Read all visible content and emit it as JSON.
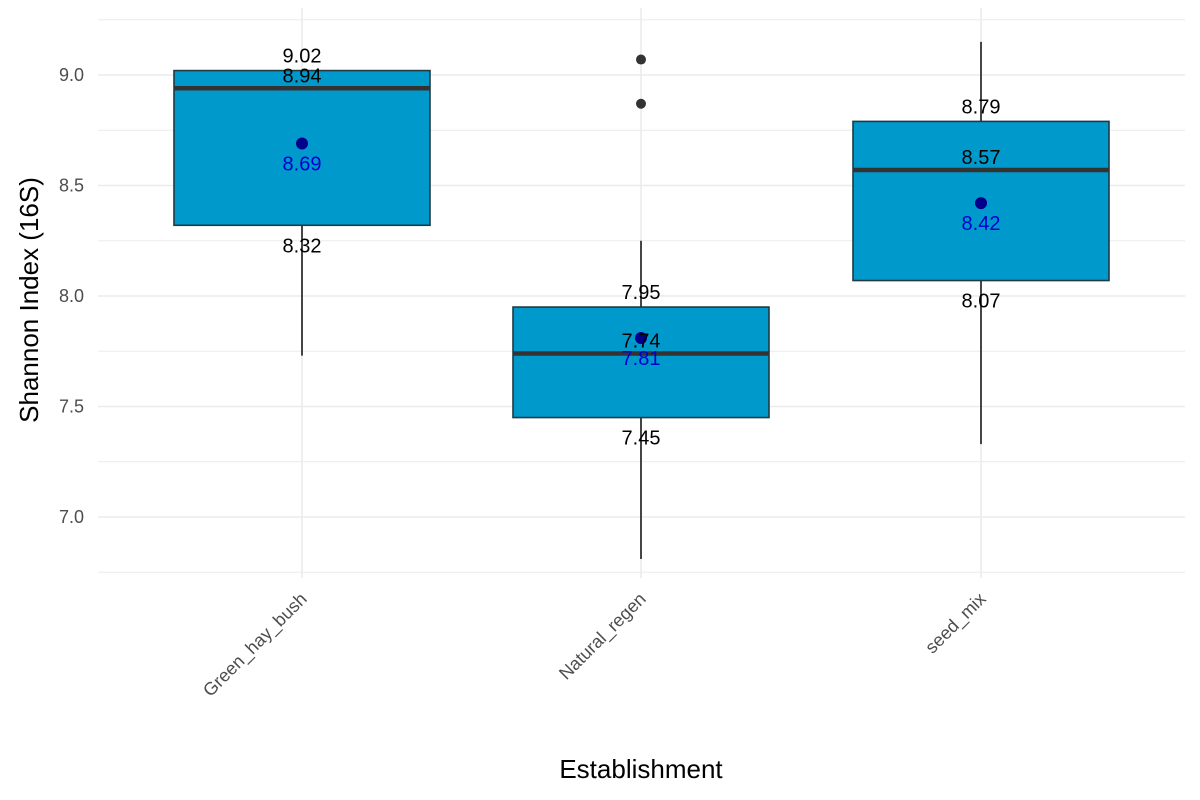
{
  "chart_data": {
    "type": "boxplot",
    "title": "",
    "xlabel": "Establishment",
    "ylabel": "Shannon Index (16S)",
    "ylim": [
      6.75,
      9.25
    ],
    "y_ticks": [
      7.0,
      7.5,
      8.0,
      8.5,
      9.0
    ],
    "y_tick_labels": [
      "7.0",
      "7.5",
      "8.0",
      "8.5",
      "9.0"
    ],
    "grid": true,
    "legend": "none",
    "categories": [
      "Green_hay_bush",
      "Natural_regen",
      "seed_mix"
    ],
    "boxes": [
      {
        "category": "Green_hay_bush",
        "whisker_low": 7.73,
        "q1": 8.32,
        "median": 8.94,
        "q3": 9.02,
        "whisker_high": 9.02,
        "mean": 8.69,
        "outliers": [],
        "labels": {
          "q1": "8.32",
          "median": "8.94",
          "q3": "9.02",
          "mean": "8.69"
        }
      },
      {
        "category": "Natural_regen",
        "whisker_low": 6.81,
        "q1": 7.45,
        "median": 7.74,
        "q3": 7.95,
        "whisker_high": 8.25,
        "mean": 7.81,
        "outliers": [
          8.87,
          9.07
        ],
        "labels": {
          "q1": "7.45",
          "median": "7.74",
          "q3": "7.95",
          "mean": "7.81"
        }
      },
      {
        "category": "seed_mix",
        "whisker_low": 7.33,
        "q1": 8.07,
        "median": 8.57,
        "q3": 8.79,
        "whisker_high": 9.15,
        "mean": 8.42,
        "outliers": [],
        "labels": {
          "q1": "8.07",
          "median": "8.57",
          "q3": "8.79",
          "mean": "8.42"
        }
      }
    ],
    "colors": {
      "box_fill": "#0099CC",
      "box_border": "#1f3a44",
      "median_line": "#333333",
      "whisker": "#1a1a1a",
      "outlier": "#333333",
      "mean_point": "#00008B",
      "mean_label": "#0000CD",
      "quartile_label": "#000000",
      "grid": "#ebebeb"
    }
  }
}
